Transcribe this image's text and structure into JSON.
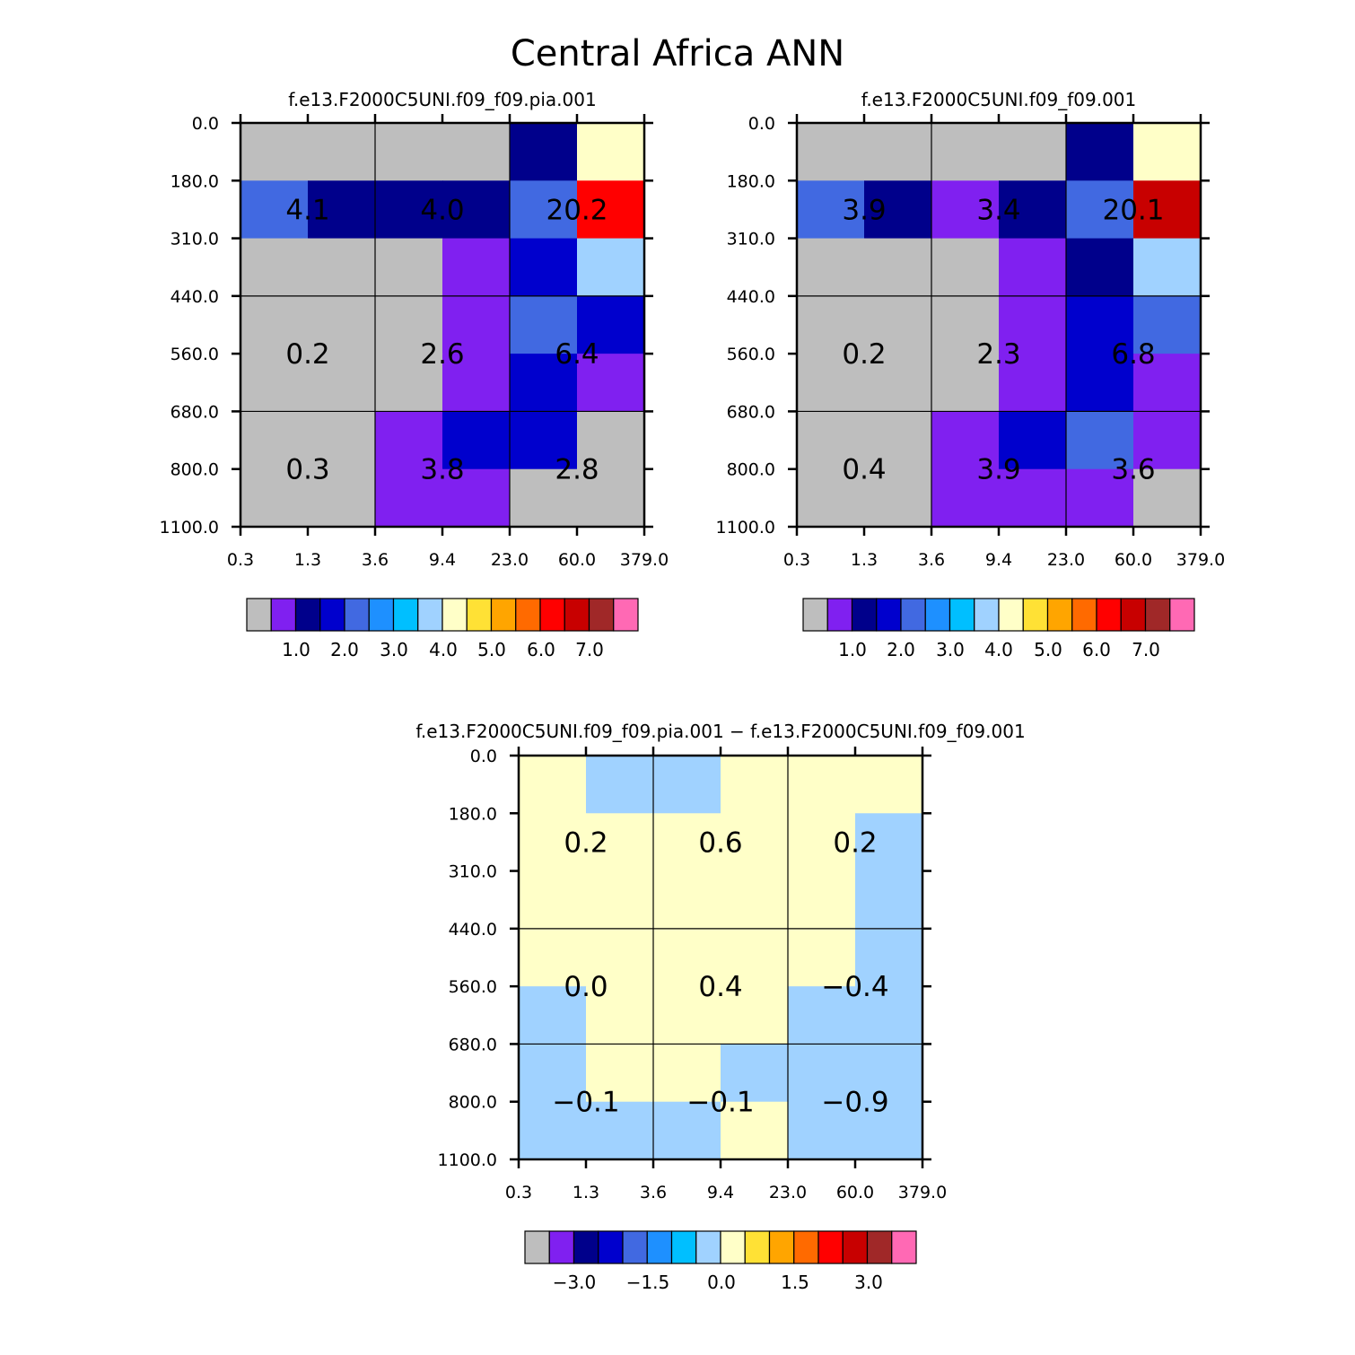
{
  "title": "Central Africa ANN",
  "chart_data": [
    {
      "type": "heatmap",
      "title": "f.e13.F2000C5UNI.f09_f09.pia.001",
      "x_tick_labels": [
        "0.3",
        "1.3",
        "3.6",
        "9.4",
        "23.0",
        "60.0",
        "379.0"
      ],
      "y_tick_labels": [
        "0.0",
        "180.0",
        "310.0",
        "440.0",
        "560.0",
        "680.0",
        "800.0",
        "1100.0"
      ],
      "cell_color_index": [
        [
          0,
          0,
          0,
          0,
          2,
          8
        ],
        [
          4,
          2,
          2,
          2,
          4,
          12
        ],
        [
          0,
          0,
          0,
          1,
          3,
          7
        ],
        [
          0,
          0,
          0,
          1,
          4,
          3
        ],
        [
          0,
          0,
          0,
          1,
          3,
          1
        ],
        [
          0,
          0,
          1,
          3,
          3,
          0
        ],
        [
          0,
          0,
          1,
          1,
          0,
          0
        ]
      ],
      "box_values": [
        [
          "4.1",
          "4.0",
          "20.2"
        ],
        [
          "0.2",
          "2.6",
          "6.4"
        ],
        [
          "0.3",
          "3.8",
          "2.8"
        ]
      ],
      "colorbar": {
        "colors": [
          "#bebebe",
          "#8020f0",
          "#00008b",
          "#0000cd",
          "#4169e1",
          "#1e90ff",
          "#00bfff",
          "#a0d2ff",
          "#ffffc8",
          "#ffe135",
          "#ffa500",
          "#ff6a00",
          "#ff0000",
          "#c80000",
          "#a02828",
          "#ff69b4"
        ],
        "tick_labels": [
          "1.0",
          "2.0",
          "3.0",
          "4.0",
          "5.0",
          "6.0",
          "7.0"
        ]
      }
    },
    {
      "type": "heatmap",
      "title": "f.e13.F2000C5UNI.f09_f09.001",
      "x_tick_labels": [
        "0.3",
        "1.3",
        "3.6",
        "9.4",
        "23.0",
        "60.0",
        "379.0"
      ],
      "y_tick_labels": [
        "0.0",
        "180.0",
        "310.0",
        "440.0",
        "560.0",
        "680.0",
        "800.0",
        "1100.0"
      ],
      "cell_color_index": [
        [
          0,
          0,
          0,
          0,
          2,
          8
        ],
        [
          4,
          2,
          1,
          2,
          4,
          13
        ],
        [
          0,
          0,
          0,
          1,
          2,
          7
        ],
        [
          0,
          0,
          0,
          1,
          3,
          4
        ],
        [
          0,
          0,
          0,
          1,
          3,
          1
        ],
        [
          0,
          0,
          1,
          3,
          4,
          1
        ],
        [
          0,
          0,
          1,
          1,
          1,
          0
        ]
      ],
      "box_values": [
        [
          "3.9",
          "3.4",
          "20.1"
        ],
        [
          "0.2",
          "2.3",
          "6.8"
        ],
        [
          "0.4",
          "3.9",
          "3.6"
        ]
      ],
      "colorbar": {
        "colors": [
          "#bebebe",
          "#8020f0",
          "#00008b",
          "#0000cd",
          "#4169e1",
          "#1e90ff",
          "#00bfff",
          "#a0d2ff",
          "#ffffc8",
          "#ffe135",
          "#ffa500",
          "#ff6a00",
          "#ff0000",
          "#c80000",
          "#a02828",
          "#ff69b4"
        ],
        "tick_labels": [
          "1.0",
          "2.0",
          "3.0",
          "4.0",
          "5.0",
          "6.0",
          "7.0"
        ]
      }
    },
    {
      "type": "heatmap",
      "title": "f.e13.F2000C5UNI.f09_f09.pia.001 − f.e13.F2000C5UNI.f09_f09.001",
      "x_tick_labels": [
        "0.3",
        "1.3",
        "3.6",
        "9.4",
        "23.0",
        "60.0",
        "379.0"
      ],
      "y_tick_labels": [
        "0.0",
        "180.0",
        "310.0",
        "440.0",
        "560.0",
        "680.0",
        "800.0",
        "1100.0"
      ],
      "cell_color_index": [
        [
          8,
          7,
          7,
          8,
          8,
          8
        ],
        [
          8,
          8,
          8,
          8,
          8,
          7
        ],
        [
          8,
          8,
          8,
          8,
          8,
          7
        ],
        [
          8,
          8,
          8,
          8,
          8,
          7
        ],
        [
          7,
          8,
          8,
          8,
          7,
          7
        ],
        [
          7,
          8,
          8,
          7,
          7,
          7
        ],
        [
          7,
          7,
          7,
          8,
          7,
          7
        ]
      ],
      "box_values": [
        [
          "0.2",
          "0.6",
          "0.2"
        ],
        [
          "0.0",
          "0.4",
          "−0.4"
        ],
        [
          "−0.1",
          "−0.1",
          "−0.9"
        ]
      ],
      "colorbar": {
        "colors": [
          "#bebebe",
          "#8020f0",
          "#00008b",
          "#0000cd",
          "#4169e1",
          "#1e90ff",
          "#00bfff",
          "#a0d2ff",
          "#ffffc8",
          "#ffe135",
          "#ffa500",
          "#ff6a00",
          "#ff0000",
          "#c80000",
          "#a02828",
          "#ff69b4"
        ],
        "tick_labels": [
          "−3.0",
          "−1.5",
          "0.0",
          "1.5",
          "3.0"
        ]
      }
    }
  ]
}
